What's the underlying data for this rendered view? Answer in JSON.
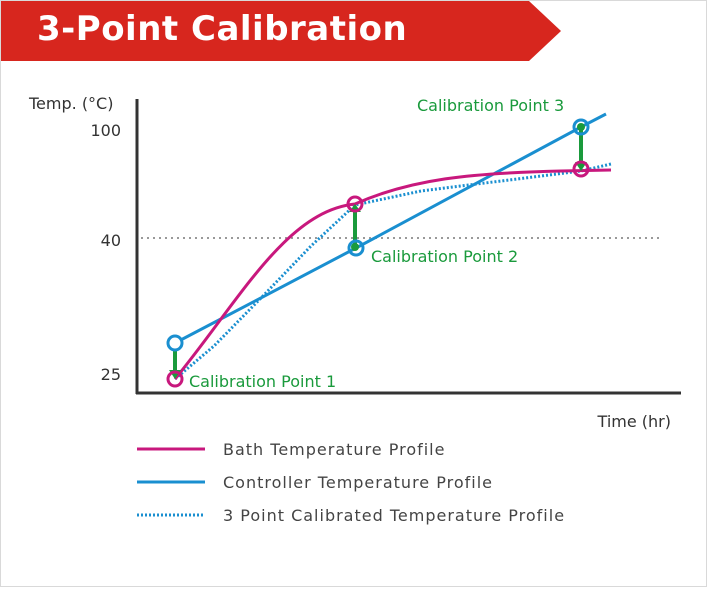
{
  "title": "3-Point Calibration",
  "colors": {
    "banner": "#d7261e",
    "bath": "#c8187d",
    "controller": "#1a8fd0",
    "calibrated": "#1a8fd0",
    "calibration_arrow": "#1a9a3c",
    "reference_line": "#999999"
  },
  "chart_data": {
    "type": "line",
    "y_axis_label": "Temp. (°C)",
    "x_axis_label": "Time (hr)",
    "y_ticks": [
      "100",
      "40",
      "25"
    ],
    "reference_line_at": "40",
    "series": [
      {
        "name": "Bath Temperature Profile",
        "style": "solid",
        "color": "#c8187d"
      },
      {
        "name": "Controller Temperature Profile",
        "style": "solid",
        "color": "#1a8fd0"
      },
      {
        "name": "3 Point Calibrated Temperature Profile",
        "style": "dotted",
        "color": "#1a8fd0"
      }
    ],
    "calibration_points": [
      {
        "label": "Calibration Point 1"
      },
      {
        "label": "Calibration Point 2"
      },
      {
        "label": "Calibration Point 3"
      }
    ],
    "grid": false,
    "legend_position": "bottom"
  }
}
